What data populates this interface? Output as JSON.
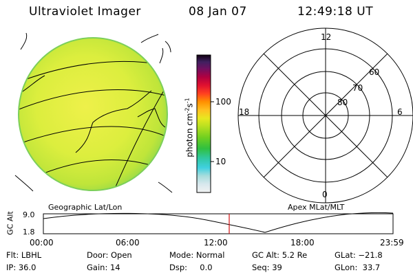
{
  "header": {
    "title": "Ultraviolet Imager",
    "date": "08 Jan 07",
    "time": "12:49:18 UT"
  },
  "image_panel": {
    "label": "Geographic Lat/Lon"
  },
  "colorbar": {
    "axis_label": "photon cm",
    "axis_label_unit_sup1": "-2",
    "axis_label_s": "s",
    "axis_label_unit_sup2": "-1",
    "ticks": [
      "100",
      "10"
    ]
  },
  "polar_plot": {
    "label": "Apex MLat/MLT",
    "mlt_labels": [
      "12",
      "18",
      "6",
      "0"
    ],
    "mlat_labels": [
      "60",
      "70",
      "80"
    ]
  },
  "altitude_plot": {
    "ylabel": "GC Alt",
    "y_ticks": [
      "9.0",
      "1.8"
    ],
    "x_ticks": [
      "00:00",
      "06:00",
      "12:00",
      "18:00",
      "23:59"
    ],
    "marker_time": "12:49"
  },
  "status": {
    "filter": "Flt: LBHL",
    "door": "Door: Open",
    "mode": "Mode: Normal",
    "gc_alt": "GC Alt: 5.2 Re",
    "glat": "GLat: −21.8",
    "ip": "IP: 36.0",
    "gain": "Gain: 14",
    "dsp": "Dsp:     0.0",
    "seq": "Seq: 39",
    "glon": "GLon:  33.7"
  },
  "colors": {
    "marker": "#d01010",
    "image_fill": "#d6ec3c"
  }
}
